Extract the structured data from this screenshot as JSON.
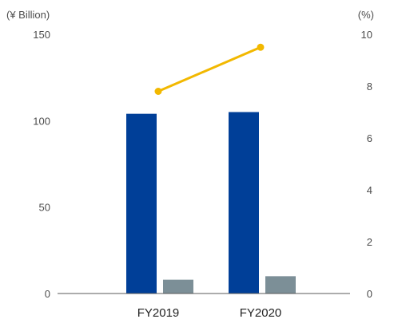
{
  "chart_data": {
    "type": "bar",
    "categories": [
      "FY2019",
      "FY2020"
    ],
    "left_axis": {
      "unit_label": "(¥ Billion)",
      "ylim": [
        0,
        150
      ],
      "ticks": [
        "0",
        "50",
        "100",
        "150"
      ]
    },
    "right_axis": {
      "unit_label": "(%)",
      "ylim": [
        0,
        10
      ],
      "ticks": [
        "0",
        "2",
        "4",
        "6",
        "8",
        "10"
      ]
    },
    "series": [
      {
        "kind": "bar",
        "axis": "left",
        "color": "#003f98",
        "values": [
          104,
          105
        ]
      },
      {
        "kind": "bar",
        "axis": "left",
        "color": "#7c8f97",
        "values": [
          8,
          10
        ]
      },
      {
        "kind": "line",
        "axis": "right",
        "color": "#f2b800",
        "values": [
          7.8,
          9.5
        ]
      }
    ],
    "grid": false,
    "legend": "none"
  }
}
